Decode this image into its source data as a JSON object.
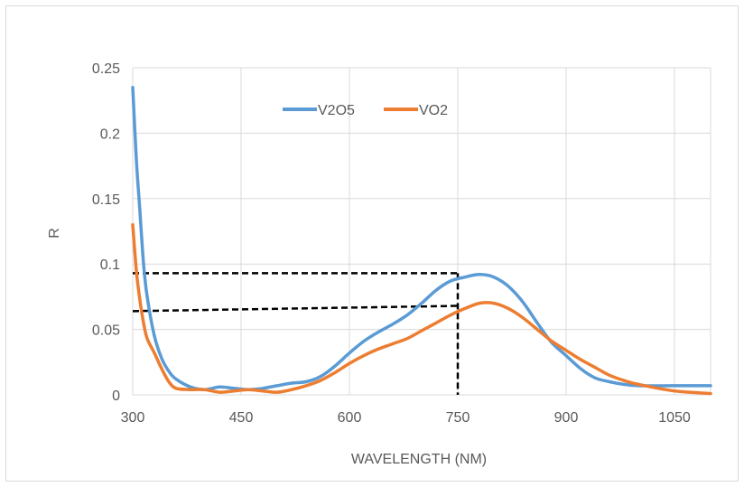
{
  "chart_data": {
    "type": "line",
    "title": "",
    "xlabel": "WAVELENGTH (NM)",
    "ylabel": "R",
    "xlim": [
      300,
      1100
    ],
    "ylim": [
      0,
      0.25
    ],
    "x_ticks": [
      300,
      450,
      600,
      750,
      900,
      1050
    ],
    "y_ticks": [
      0,
      0.05,
      0.1,
      0.15,
      0.2,
      0.25
    ],
    "x_tick_labels": [
      "300",
      "450",
      "600",
      "750",
      "900",
      "1050"
    ],
    "y_tick_labels": [
      "0",
      "0.05",
      "0.1",
      "0.15",
      "0.2",
      "0.25"
    ],
    "grid": true,
    "legend_position": "top-center",
    "series": [
      {
        "name": "V2O5",
        "color": "#5b9bd5",
        "x": [
          300,
          305,
          310,
          315,
          320,
          330,
          340,
          350,
          360,
          380,
          400,
          420,
          440,
          460,
          480,
          500,
          520,
          540,
          560,
          580,
          600,
          620,
          640,
          660,
          680,
          700,
          720,
          740,
          760,
          780,
          800,
          820,
          840,
          860,
          880,
          900,
          920,
          940,
          960,
          980,
          1000,
          1050,
          1100
        ],
        "y": [
          0.235,
          0.18,
          0.14,
          0.1,
          0.075,
          0.045,
          0.028,
          0.018,
          0.012,
          0.006,
          0.004,
          0.006,
          0.005,
          0.004,
          0.005,
          0.007,
          0.009,
          0.01,
          0.014,
          0.022,
          0.032,
          0.041,
          0.048,
          0.054,
          0.061,
          0.07,
          0.08,
          0.087,
          0.09,
          0.092,
          0.09,
          0.083,
          0.071,
          0.055,
          0.04,
          0.03,
          0.02,
          0.013,
          0.01,
          0.008,
          0.007,
          0.007,
          0.007
        ]
      },
      {
        "name": "VO2",
        "color": "#ed7d31",
        "x": [
          300,
          305,
          310,
          315,
          320,
          330,
          340,
          350,
          360,
          380,
          400,
          420,
          440,
          460,
          480,
          500,
          520,
          540,
          560,
          580,
          600,
          620,
          640,
          660,
          680,
          700,
          720,
          740,
          760,
          780,
          800,
          820,
          840,
          860,
          880,
          900,
          920,
          940,
          960,
          980,
          1000,
          1050,
          1100
        ],
        "y": [
          0.13,
          0.095,
          0.072,
          0.055,
          0.043,
          0.032,
          0.02,
          0.01,
          0.005,
          0.004,
          0.004,
          0.002,
          0.003,
          0.004,
          0.003,
          0.002,
          0.004,
          0.007,
          0.011,
          0.017,
          0.024,
          0.03,
          0.035,
          0.039,
          0.043,
          0.049,
          0.055,
          0.061,
          0.066,
          0.07,
          0.07,
          0.066,
          0.059,
          0.05,
          0.041,
          0.034,
          0.027,
          0.021,
          0.015,
          0.011,
          0.008,
          0.003,
          0.001
        ]
      }
    ],
    "annotations": [
      {
        "type": "dashed-line",
        "color": "#000000",
        "x": [
          300,
          750
        ],
        "y": [
          0.093,
          0.093
        ]
      },
      {
        "type": "dashed-line",
        "color": "#000000",
        "x": [
          300,
          750
        ],
        "y": [
          0.064,
          0.068
        ]
      },
      {
        "type": "dashed-line",
        "color": "#000000",
        "x": [
          750,
          750
        ],
        "y": [
          0.093,
          0
        ]
      }
    ]
  }
}
